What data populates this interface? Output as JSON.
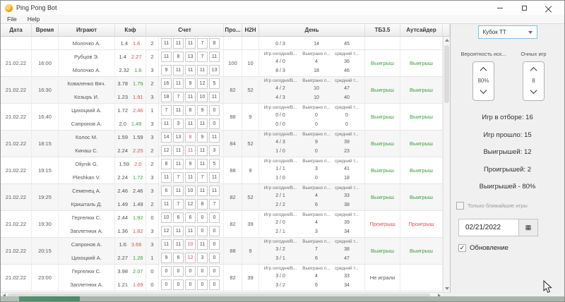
{
  "window": {
    "title": "Ping Pong Bot"
  },
  "menu": {
    "items": [
      "File",
      "Help"
    ]
  },
  "colors": {
    "win": "#3d9e3d",
    "loss": "#e04e4e"
  },
  "table": {
    "headers": {
      "date": "Дата",
      "time": "Время",
      "players": "Играют",
      "coef": "Кэф",
      "score": "Счет",
      "pro": "Про...",
      "h2h": "Н2Н",
      "day": "День",
      "tb35": "ТБ3.5",
      "outsider": "Аутсайдер"
    },
    "day_subheaders": [
      "Игр сегодня/В...",
      "Выиграно п...",
      "средний т..."
    ],
    "rows": [
      {
        "date": "",
        "time": "",
        "pro": "",
        "h2h": "",
        "tb": "",
        "tbc": "k",
        "out": "",
        "outc": "k",
        "p1": {
          "name": "",
          "kf1": "",
          "kf2": "",
          "kf2c": "k",
          "sets": "",
          "scores": [
            "",
            "",
            "",
            "",
            ""
          ],
          "scolors": [
            "k",
            "k",
            "k",
            "k",
            "k"
          ],
          "day_games": "",
          "day_won": "",
          "day_avg": ""
        },
        "p2": {
          "name": "Молочко А.",
          "kf1": "1.4",
          "kf2": "1.6",
          "kf2c": "r",
          "sets": "2",
          "scores": [
            "11",
            "11",
            "11",
            "7",
            "8"
          ],
          "scolors": [
            "k",
            "k",
            "k",
            "k",
            "k"
          ],
          "day_games": "0 / 3",
          "day_won": "14",
          "day_avg": "45"
        }
      },
      {
        "date": "21.02.22",
        "time": "16:00",
        "pro": "100",
        "h2h": "10",
        "tb": "Выигрыш",
        "tbc": "g",
        "out": "Выигрыш",
        "outc": "g",
        "p1": {
          "name": "Рубцов Э.",
          "kf1": "1.4",
          "kf2": "2.27",
          "kf2c": "r",
          "sets": "2",
          "scores": [
            "11",
            "8",
            "13",
            "7",
            "11"
          ],
          "scolors": [
            "k",
            "k",
            "k",
            "k",
            "k"
          ],
          "day_games": "4 / 0",
          "day_won": "4",
          "day_avg": "36"
        },
        "p2": {
          "name": "Молочко А.",
          "kf1": "2.32",
          "kf2": "1.6",
          "kf2c": "g",
          "sets": "3",
          "scores": [
            "9",
            "11",
            "11",
            "11",
            "13"
          ],
          "scolors": [
            "k",
            "k",
            "k",
            "k",
            "k"
          ],
          "day_games": "8 / 3",
          "day_won": "18",
          "day_avg": "46"
        }
      },
      {
        "date": "21.02.22",
        "time": "16:30",
        "pro": "82",
        "h2h": "52",
        "tb": "Выигрыш",
        "tbc": "g",
        "out": "Выигрыш",
        "outc": "g",
        "p1": {
          "name": "Коваленко Вяч.",
          "kf1": "3.78",
          "kf2": "1.79",
          "kf2c": "g",
          "sets": "2",
          "scores": [
            "16",
            "11",
            "9",
            "12",
            "5"
          ],
          "scolors": [
            "k",
            "k",
            "k",
            "k",
            "k"
          ],
          "day_games": "4 / 2",
          "day_won": "10",
          "day_avg": "47"
        },
        "p2": {
          "name": "Козырь И.",
          "kf1": "1.23",
          "kf2": "1.91",
          "kf2c": "r",
          "sets": "3",
          "scores": [
            "18",
            "7",
            "11",
            "10",
            "11"
          ],
          "scolors": [
            "k",
            "k",
            "k",
            "k",
            "k"
          ],
          "day_games": "4 / 3",
          "day_won": "10",
          "day_avg": "40"
        }
      },
      {
        "date": "21.02.22",
        "time": "16:40",
        "pro": "88",
        "h2h": "9",
        "tb": "Выигрыш",
        "tbc": "g",
        "out": "Выигрыш",
        "outc": "g",
        "p1": {
          "name": "Цихоцкий А.",
          "kf1": "1.72",
          "kf2": "2.46",
          "kf2c": "r",
          "sets": "1",
          "scores": [
            "7",
            "11",
            "8",
            "9",
            "0"
          ],
          "scolors": [
            "k",
            "k",
            "k",
            "k",
            "k"
          ],
          "day_games": "0 / 0",
          "day_won": "0",
          "day_avg": "0"
        },
        "p2": {
          "name": "Сапронов А.",
          "kf1": "2.0",
          "kf2": "1.49",
          "kf2c": "g",
          "sets": "3",
          "scores": [
            "11",
            "3",
            "11",
            "11",
            "0"
          ],
          "scolors": [
            "k",
            "k",
            "k",
            "k",
            "k"
          ],
          "day_games": "0 / 0",
          "day_won": "0",
          "day_avg": "0"
        }
      },
      {
        "date": "21.02.22",
        "time": "18:15",
        "pro": "84",
        "h2h": "52",
        "tb": "Выигрыш",
        "tbc": "g",
        "out": "Выигрыш",
        "outc": "g",
        "p1": {
          "name": "Колос М.",
          "kf1": "1.59",
          "kf2": "1.59",
          "kf2c": "k",
          "sets": "3",
          "scores": [
            "14",
            "13",
            "8",
            "9",
            "11"
          ],
          "scolors": [
            "k",
            "k",
            "r",
            "k",
            "k"
          ],
          "day_games": "4 / 3",
          "day_won": "9",
          "day_avg": "39"
        },
        "p2": {
          "name": "Кинаш С.",
          "kf1": "2.24",
          "kf2": "2.25",
          "kf2c": "r",
          "sets": "2",
          "scores": [
            "12",
            "11",
            "11",
            "11",
            "3"
          ],
          "scolors": [
            "k",
            "k",
            "r",
            "k",
            "k"
          ],
          "day_games": "1 / 0",
          "day_won": "0",
          "day_avg": "23"
        }
      },
      {
        "date": "21.02.22",
        "time": "19:15",
        "pro": "88",
        "h2h": "9",
        "tb": "Выигрыш",
        "tbc": "g",
        "out": "Выигрыш",
        "outc": "g",
        "p1": {
          "name": "Oliynik G.",
          "kf1": "1.59",
          "kf2": "2.0",
          "kf2c": "r",
          "sets": "2",
          "scores": [
            "8",
            "11",
            "9",
            "11",
            "5"
          ],
          "scolors": [
            "k",
            "k",
            "k",
            "k",
            "k"
          ],
          "day_games": "1 / 1",
          "day_won": "3",
          "day_avg": "41"
        },
        "p2": {
          "name": "Pleshkan V.",
          "kf1": "2.24",
          "kf2": "1.72",
          "kf2c": "g",
          "sets": "3",
          "scores": [
            "11",
            "7",
            "11",
            "7",
            "11"
          ],
          "scolors": [
            "k",
            "k",
            "k",
            "k",
            "k"
          ],
          "day_games": "1 / 0",
          "day_won": "0",
          "day_avg": "18"
        }
      },
      {
        "date": "21.02.22",
        "time": "19:25",
        "pro": "82",
        "h2h": "52",
        "tb": "Выигрыш",
        "tbc": "g",
        "out": "Выигрыш",
        "outc": "g",
        "p1": {
          "name": "Семенец А.",
          "kf1": "2.46",
          "kf2": "2.46",
          "kf2c": "k",
          "sets": "3",
          "scores": [
            "6",
            "11",
            "10",
            "11",
            "11"
          ],
          "scolors": [
            "k",
            "k",
            "k",
            "k",
            "k"
          ],
          "day_games": "2 / 1",
          "day_won": "4",
          "day_avg": "33"
        },
        "p2": {
          "name": "Кришталь Д.",
          "kf1": "1.49",
          "kf2": "1.49",
          "kf2c": "k",
          "sets": "2",
          "scores": [
            "11",
            "7",
            "12",
            "8",
            "7"
          ],
          "scolors": [
            "k",
            "k",
            "k",
            "k",
            "k"
          ],
          "day_games": "2 / 2",
          "day_won": "6",
          "day_avg": "38"
        }
      },
      {
        "date": "21.02.22",
        "time": "19:30",
        "pro": "82",
        "h2h": "39",
        "tb": "Проигрыш",
        "tbc": "r",
        "out": "Проигрыш",
        "outc": "r",
        "p1": {
          "name": "Гергелюк С.",
          "kf1": "2.44",
          "kf2": "1.92",
          "kf2c": "g",
          "sets": "0",
          "scores": [
            "10",
            "6",
            "6",
            "0",
            "0"
          ],
          "scolors": [
            "k",
            "k",
            "k",
            "k",
            "k"
          ],
          "day_games": "2 / 0",
          "day_won": "4",
          "day_avg": "39"
        },
        "p2": {
          "name": "Заплетнюк А.",
          "kf1": "1.36",
          "kf2": "1.82",
          "kf2c": "r",
          "sets": "3",
          "scores": [
            "12",
            "11",
            "11",
            "0",
            "0"
          ],
          "scolors": [
            "k",
            "k",
            "k",
            "k",
            "k"
          ],
          "day_games": "2 / 1",
          "day_won": "3",
          "day_avg": "34"
        }
      },
      {
        "date": "21.02.22",
        "time": "20:15",
        "pro": "88",
        "h2h": "9",
        "tb": "Выигрыш",
        "tbc": "g",
        "out": "Выигрыш",
        "outc": "g",
        "p1": {
          "name": "Сапронов А.",
          "kf1": "1.6",
          "kf2": "3.66",
          "kf2c": "r",
          "sets": "3",
          "scores": [
            "11",
            "11",
            "10",
            "11",
            "0"
          ],
          "scolors": [
            "k",
            "k",
            "r",
            "k",
            "k"
          ],
          "day_games": "3 / 2",
          "day_won": "7",
          "day_avg": "38"
        },
        "p2": {
          "name": "Цихоцкий А.",
          "kf1": "2.27",
          "kf2": "1.26",
          "kf2c": "g",
          "sets": "1",
          "scores": [
            "9",
            "6",
            "12",
            "3",
            "0"
          ],
          "scolors": [
            "k",
            "k",
            "r",
            "k",
            "k"
          ],
          "day_games": "3 / 1",
          "day_won": "6",
          "day_avg": "47"
        }
      },
      {
        "date": "21.02.22",
        "time": "23:00",
        "pro": "82",
        "h2h": "39",
        "tb": "Не играли",
        "tbc": "k",
        "out": "",
        "outc": "k",
        "p1": {
          "name": "Гергелюк С.",
          "kf1": "3.98",
          "kf2": "2.07",
          "kf2c": "g",
          "sets": "0",
          "scores": [
            "0",
            "0",
            "0",
            "0",
            "0"
          ],
          "scolors": [
            "k",
            "k",
            "k",
            "k",
            "k"
          ],
          "day_games": "3 / 0",
          "day_won": "4",
          "day_avg": "33"
        },
        "p2": {
          "name": "Заплетнюк А.",
          "kf1": "1.21",
          "kf2": "1.69",
          "kf2c": "r",
          "sets": "0",
          "scores": [
            "0",
            "0",
            "0",
            "0",
            "0"
          ],
          "scolors": [
            "k",
            "k",
            "k",
            "k",
            "k"
          ],
          "day_games": "3 / 2",
          "day_won": "6",
          "day_avg": "34"
        }
      }
    ]
  },
  "panel": {
    "tournament_value": "Кубок ТТ",
    "probability_label": "Вероятность иск...",
    "probability_value": "80%",
    "h2h_games_label": "Очных игр",
    "h2h_games_value": "8",
    "stats": [
      "Игр в отборе: 16",
      "Игр прошло: 15",
      "Выигрышей: 12",
      "Проигрышей: 2",
      "Выигрышей - 80%"
    ],
    "nearest_games_checkbox": {
      "label": "Только ближайшие игры",
      "checked": false
    },
    "date_value": "02/21/2022",
    "update_checkbox": {
      "label": "Обновление",
      "checked": true
    }
  }
}
